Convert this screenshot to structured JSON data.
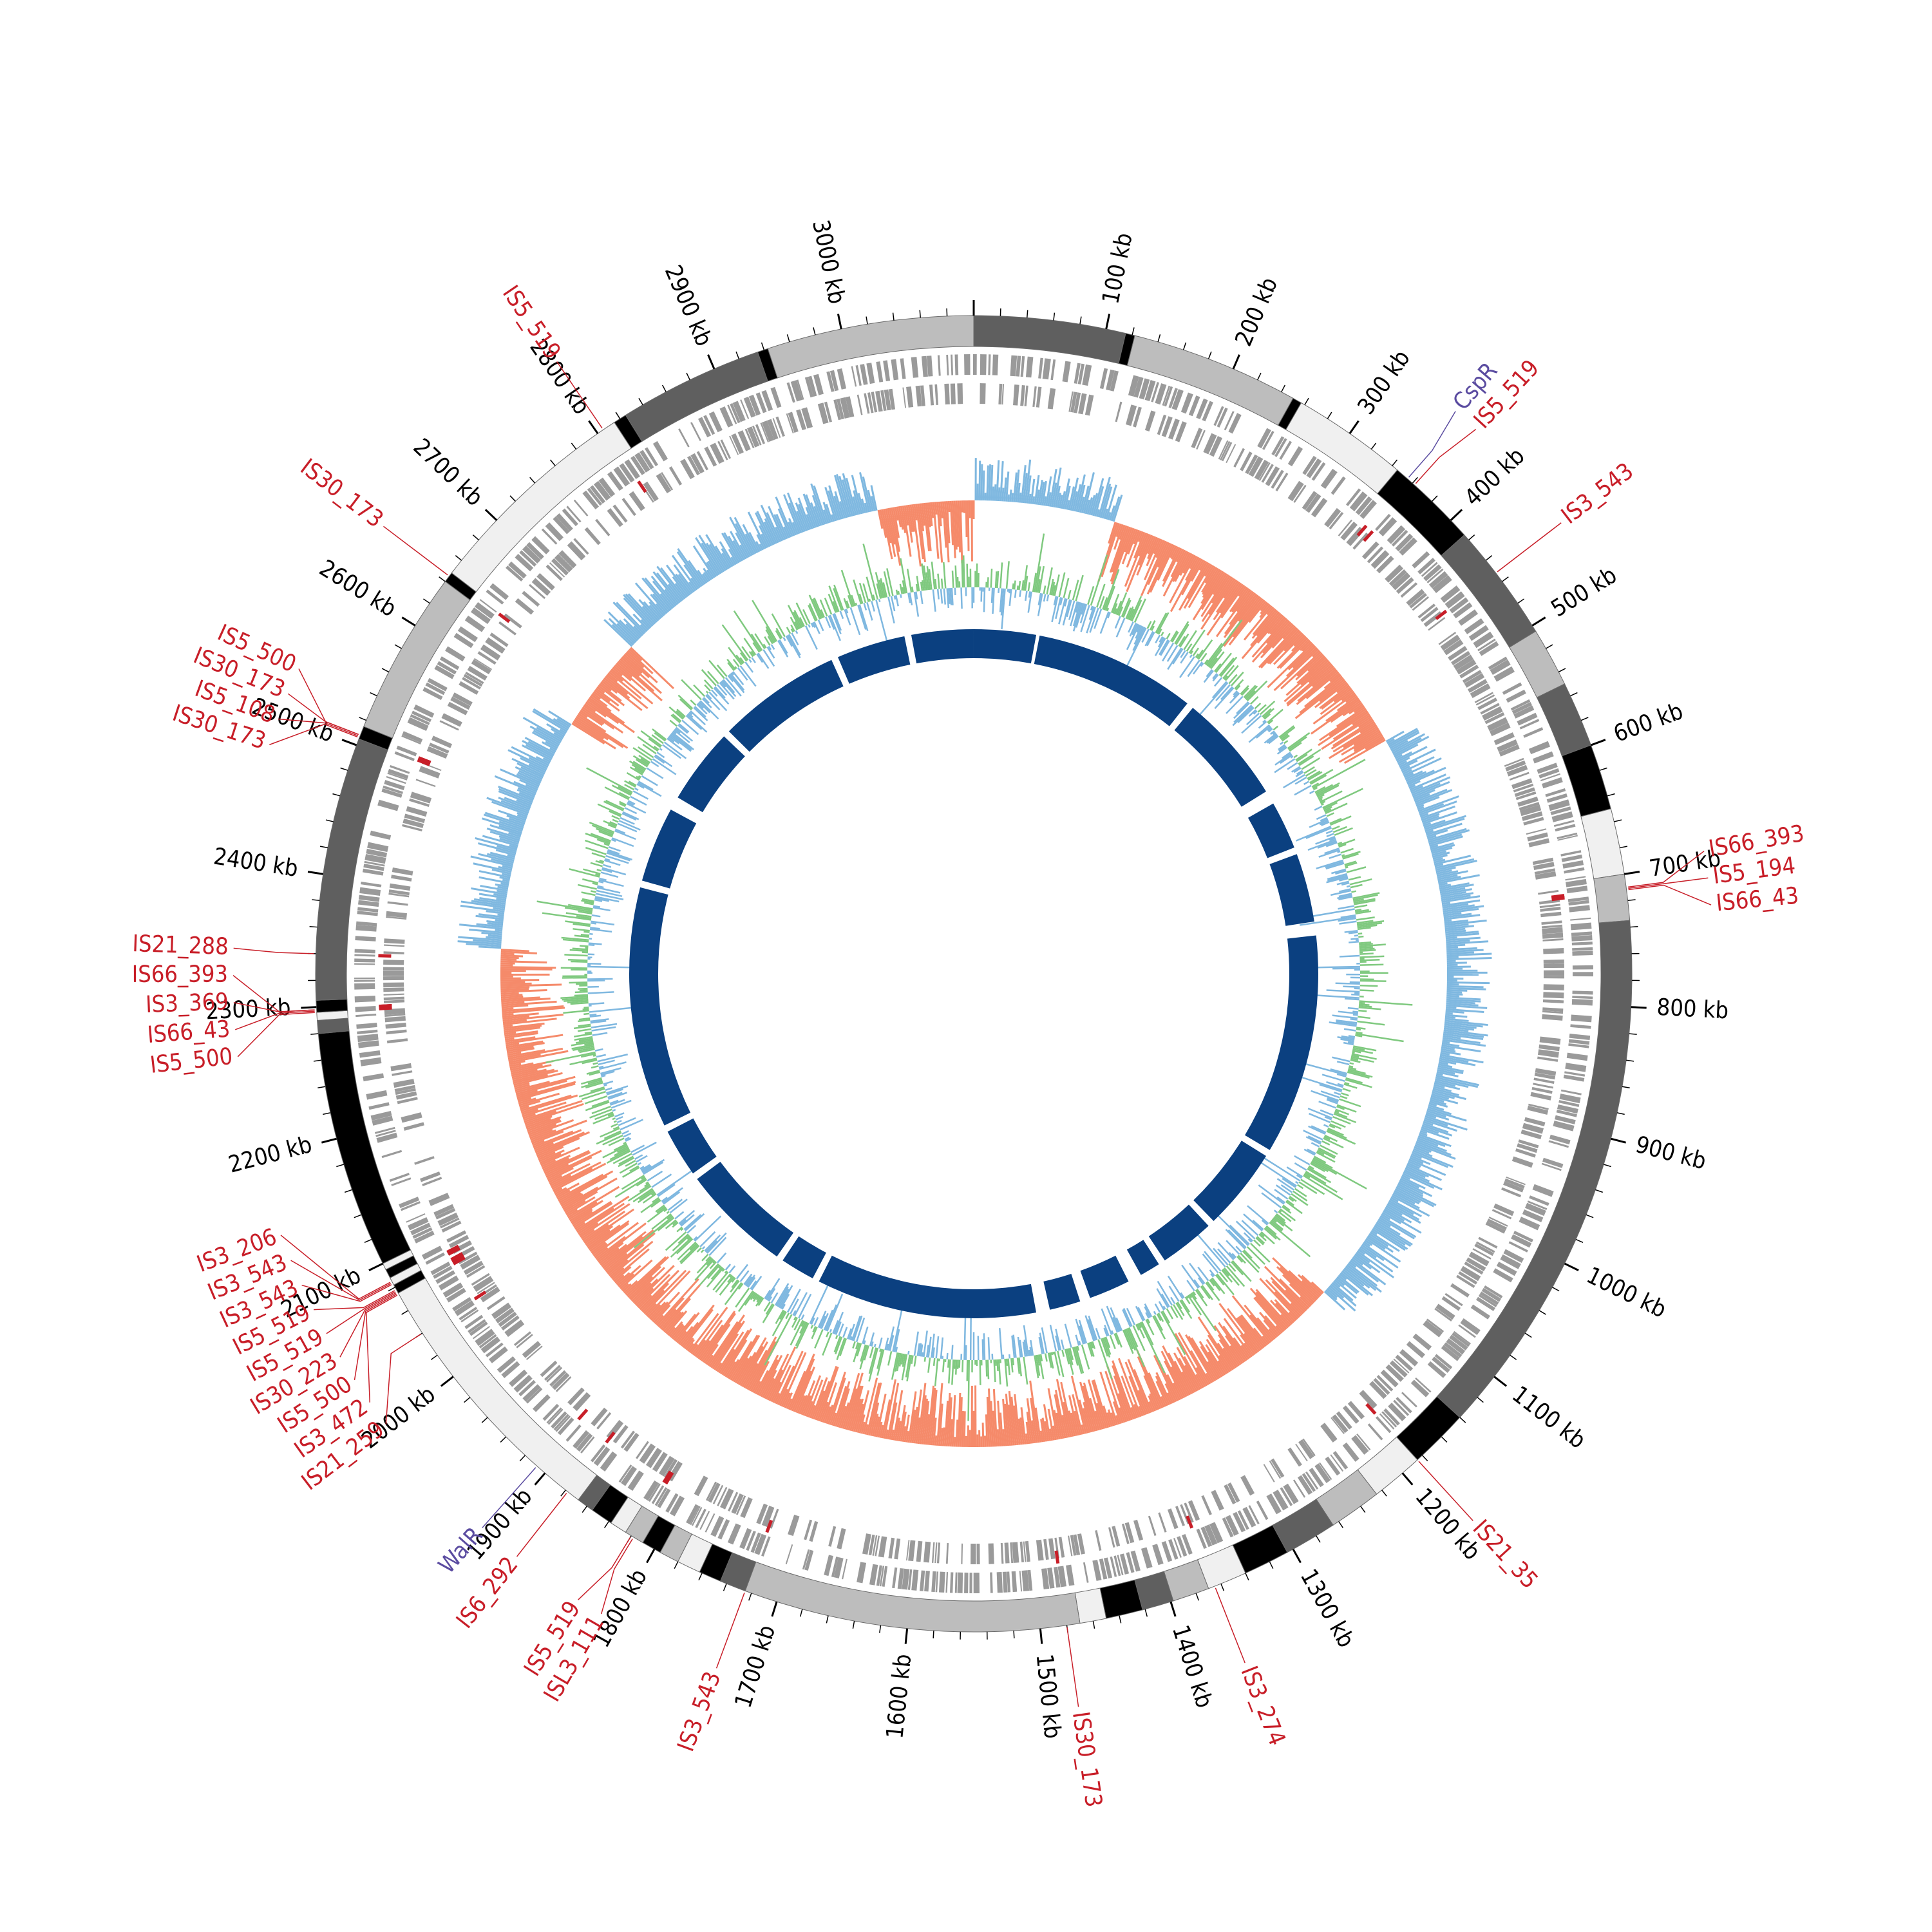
{
  "diagram": {
    "genome_size_kb": 3100,
    "tick_label_suffix": "kb",
    "scale_labels": [
      {
        "kb": 100,
        "text": "100 kb"
      },
      {
        "kb": 200,
        "text": "200 kb"
      },
      {
        "kb": 300,
        "text": "300 kb"
      },
      {
        "kb": 400,
        "text": "400 kb"
      },
      {
        "kb": 500,
        "text": "500 kb"
      },
      {
        "kb": 600,
        "text": "600 kb"
      },
      {
        "kb": 700,
        "text": "700 kb"
      },
      {
        "kb": 800,
        "text": "800 kb"
      },
      {
        "kb": 900,
        "text": "900 kb"
      },
      {
        "kb": 1000,
        "text": "1000 kb"
      },
      {
        "kb": 1100,
        "text": "1100 kb"
      },
      {
        "kb": 1200,
        "text": "1200 kb"
      },
      {
        "kb": 1300,
        "text": "1300 kb"
      },
      {
        "kb": 1400,
        "text": "1400 kb"
      },
      {
        "kb": 1500,
        "text": "1500 kb"
      },
      {
        "kb": 1600,
        "text": "1600 kb"
      },
      {
        "kb": 1700,
        "text": "1700 kb"
      },
      {
        "kb": 1800,
        "text": "1800 kb"
      },
      {
        "kb": 1900,
        "text": "1900 kb"
      },
      {
        "kb": 2000,
        "text": "2000 kb"
      },
      {
        "kb": 2100,
        "text": "2100 kb"
      },
      {
        "kb": 2200,
        "text": "2200 kb"
      },
      {
        "kb": 2300,
        "text": "2300 kb"
      },
      {
        "kb": 2400,
        "text": "2400 kb"
      },
      {
        "kb": 2500,
        "text": "2500 kb"
      },
      {
        "kb": 2600,
        "text": "2600 kb"
      },
      {
        "kb": 2700,
        "text": "2700 kb"
      },
      {
        "kb": 2800,
        "text": "2800 kb"
      },
      {
        "kb": 2900,
        "text": "2900 kb"
      },
      {
        "kb": 3000,
        "text": "3000 kb"
      }
    ],
    "outer_blocks": [
      {
        "start": 0,
        "end": 115,
        "color": "#5f5f5f"
      },
      {
        "start": 115,
        "end": 122,
        "color": "#000000"
      },
      {
        "start": 122,
        "end": 250,
        "color": "#bdbdbd"
      },
      {
        "start": 250,
        "end": 257,
        "color": "#000000"
      },
      {
        "start": 257,
        "end": 345,
        "color": "#f0f0f0"
      },
      {
        "start": 345,
        "end": 415,
        "color": "#000000"
      },
      {
        "start": 415,
        "end": 505,
        "color": "#5f5f5f"
      },
      {
        "start": 505,
        "end": 550,
        "color": "#bdbdbd"
      },
      {
        "start": 550,
        "end": 600,
        "color": "#5f5f5f"
      },
      {
        "start": 600,
        "end": 650,
        "color": "#000000"
      },
      {
        "start": 650,
        "end": 700,
        "color": "#f0f0f0"
      },
      {
        "start": 700,
        "end": 735,
        "color": "#bdbdbd"
      },
      {
        "start": 735,
        "end": 1140,
        "color": "#5f5f5f"
      },
      {
        "start": 1140,
        "end": 1185,
        "color": "#000000"
      },
      {
        "start": 1185,
        "end": 1225,
        "color": "#f0f0f0"
      },
      {
        "start": 1225,
        "end": 1265,
        "color": "#bdbdbd"
      },
      {
        "start": 1265,
        "end": 1305,
        "color": "#5f5f5f"
      },
      {
        "start": 1305,
        "end": 1340,
        "color": "#000000"
      },
      {
        "start": 1340,
        "end": 1370,
        "color": "#f0f0f0"
      },
      {
        "start": 1370,
        "end": 1398,
        "color": "#bdbdbd"
      },
      {
        "start": 1398,
        "end": 1422,
        "color": "#5f5f5f"
      },
      {
        "start": 1422,
        "end": 1450,
        "color": "#000000"
      },
      {
        "start": 1450,
        "end": 1470,
        "color": "#f0f0f0"
      },
      {
        "start": 1470,
        "end": 1725,
        "color": "#bdbdbd"
      },
      {
        "start": 1725,
        "end": 1745,
        "color": "#5f5f5f"
      },
      {
        "start": 1745,
        "end": 1762,
        "color": "#000000"
      },
      {
        "start": 1762,
        "end": 1780,
        "color": "#f0f0f0"
      },
      {
        "start": 1780,
        "end": 1795,
        "color": "#bdbdbd"
      },
      {
        "start": 1795,
        "end": 1810,
        "color": "#000000"
      },
      {
        "start": 1810,
        "end": 1825,
        "color": "#bdbdbd"
      },
      {
        "start": 1825,
        "end": 1838,
        "color": "#f0f0f0"
      },
      {
        "start": 1838,
        "end": 1855,
        "color": "#000000"
      },
      {
        "start": 1855,
        "end": 1868,
        "color": "#5f5f5f"
      },
      {
        "start": 1868,
        "end": 2075,
        "color": "#f0f0f0"
      },
      {
        "start": 2075,
        "end": 2082,
        "color": "#000000"
      },
      {
        "start": 2082,
        "end": 2088,
        "color": "#f0f0f0"
      },
      {
        "start": 2088,
        "end": 2095,
        "color": "#000000"
      },
      {
        "start": 2095,
        "end": 2100,
        "color": "#f0f0f0"
      },
      {
        "start": 2100,
        "end": 2280,
        "color": "#000000"
      },
      {
        "start": 2280,
        "end": 2290,
        "color": "#5f5f5f"
      },
      {
        "start": 2290,
        "end": 2296,
        "color": "#f0f0f0"
      },
      {
        "start": 2296,
        "end": 2305,
        "color": "#000000"
      },
      {
        "start": 2305,
        "end": 2505,
        "color": "#5f5f5f"
      },
      {
        "start": 2505,
        "end": 2515,
        "color": "#000000"
      },
      {
        "start": 2515,
        "end": 2640,
        "color": "#bdbdbd"
      },
      {
        "start": 2640,
        "end": 2648,
        "color": "#000000"
      },
      {
        "start": 2648,
        "end": 2815,
        "color": "#f0f0f0"
      },
      {
        "start": 2815,
        "end": 2825,
        "color": "#000000"
      },
      {
        "start": 2825,
        "end": 2935,
        "color": "#5f5f5f"
      },
      {
        "start": 2935,
        "end": 2943,
        "color": "#000000"
      },
      {
        "start": 2943,
        "end": 3100,
        "color": "#bdbdbd"
      }
    ],
    "inner_ring_gaps": [
      {
        "start": 90,
        "end": 95
      },
      {
        "start": 330,
        "end": 340
      },
      {
        "start": 500,
        "end": 520
      },
      {
        "start": 590,
        "end": 600
      },
      {
        "start": 700,
        "end": 720
      },
      {
        "start": 1040,
        "end": 1050
      },
      {
        "start": 1170,
        "end": 1180
      },
      {
        "start": 1260,
        "end": 1270
      },
      {
        "start": 1300,
        "end": 1320
      },
      {
        "start": 1380,
        "end": 1395
      },
      {
        "start": 1440,
        "end": 1460
      },
      {
        "start": 1780,
        "end": 1790
      },
      {
        "start": 1840,
        "end": 1850
      },
      {
        "start": 2010,
        "end": 2020
      },
      {
        "start": 2090,
        "end": 2100
      },
      {
        "start": 2450,
        "end": 2460
      },
      {
        "start": 2570,
        "end": 2590
      },
      {
        "start": 2700,
        "end": 2710
      },
      {
        "start": 2890,
        "end": 2900
      },
      {
        "start": 3000,
        "end": 3010
      }
    ],
    "features": [
      {
        "text": "IS5_519",
        "kb": 2805,
        "color": "#c81e28"
      },
      {
        "text": "IS30_173",
        "kb": 2645,
        "color": "#c81e28"
      },
      {
        "text": "IS30_173",
        "kb": 2508,
        "color": "#c81e28"
      },
      {
        "text": "IS5_500",
        "kb": 2508,
        "color": "#c81e28"
      },
      {
        "text": "IS5_108",
        "kb": 2507,
        "color": "#c81e28"
      },
      {
        "text": "IS30_173",
        "kb": 2506,
        "color": "#c81e28"
      },
      {
        "text": "IS21_288",
        "kb": 2340,
        "color": "#c81e28"
      },
      {
        "text": "IS3_369",
        "kb": 2298,
        "color": "#c81e28"
      },
      {
        "text": "IS66_393",
        "kb": 2298,
        "color": "#c81e28"
      },
      {
        "text": "IS66_43",
        "kb": 2297,
        "color": "#c81e28"
      },
      {
        "text": "IS5_500",
        "kb": 2296,
        "color": "#c81e28"
      },
      {
        "text": "IS3_206",
        "kb": 2085,
        "color": "#c81e28"
      },
      {
        "text": "IS3_543",
        "kb": 2084,
        "color": "#c81e28"
      },
      {
        "text": "IS3_543",
        "kb": 2083,
        "color": "#c81e28"
      },
      {
        "text": "IS5_519",
        "kb": 2078,
        "color": "#c81e28"
      },
      {
        "text": "IS5_519",
        "kb": 2077,
        "color": "#c81e28"
      },
      {
        "text": "IS30_223",
        "kb": 2076,
        "color": "#c81e28"
      },
      {
        "text": "IS5_500",
        "kb": 2075,
        "color": "#c81e28"
      },
      {
        "text": "IS3_472",
        "kb": 2074,
        "color": "#c81e28"
      },
      {
        "text": "IS21_259",
        "kb": 2040,
        "color": "#c81e28"
      },
      {
        "text": "WalR",
        "kb": 1908,
        "color": "#5a4ba0"
      },
      {
        "text": "IS6_292",
        "kb": 1878,
        "color": "#c81e28"
      },
      {
        "text": "IS5_519",
        "kb": 1820,
        "color": "#c81e28"
      },
      {
        "text": "ISL3_111",
        "kb": 1818,
        "color": "#c81e28"
      },
      {
        "text": "IS3_543",
        "kb": 1725,
        "color": "#c81e28"
      },
      {
        "text": "IS30_173",
        "kb": 1480,
        "color": "#c81e28"
      },
      {
        "text": "IS3_274",
        "kb": 1365,
        "color": "#c81e28"
      },
      {
        "text": "IS21_35",
        "kb": 1185,
        "color": "#c81e28"
      },
      {
        "text": "IS66_43",
        "kb": 712,
        "color": "#c81e28"
      },
      {
        "text": "IS5_194",
        "kb": 711,
        "color": "#c81e28"
      },
      {
        "text": "IS66_393",
        "kb": 710,
        "color": "#c81e28"
      },
      {
        "text": "IS3_543",
        "kb": 452,
        "color": "#c81e28"
      },
      {
        "text": "IS5_519",
        "kb": 362,
        "color": "#c81e28"
      },
      {
        "text": "CspR",
        "kb": 355,
        "color": "#5a4ba0"
      }
    ],
    "colors": {
      "cds": "#9a9a9a",
      "gc_skew_positive": "#7fb8e0",
      "gc_skew_negative": "#f58a6a",
      "gc_content_high": "#7fc97f",
      "gc_content_low": "#7fb8e0",
      "homology_ring": "#0b4080",
      "is_marker": "#c81e28"
    }
  }
}
